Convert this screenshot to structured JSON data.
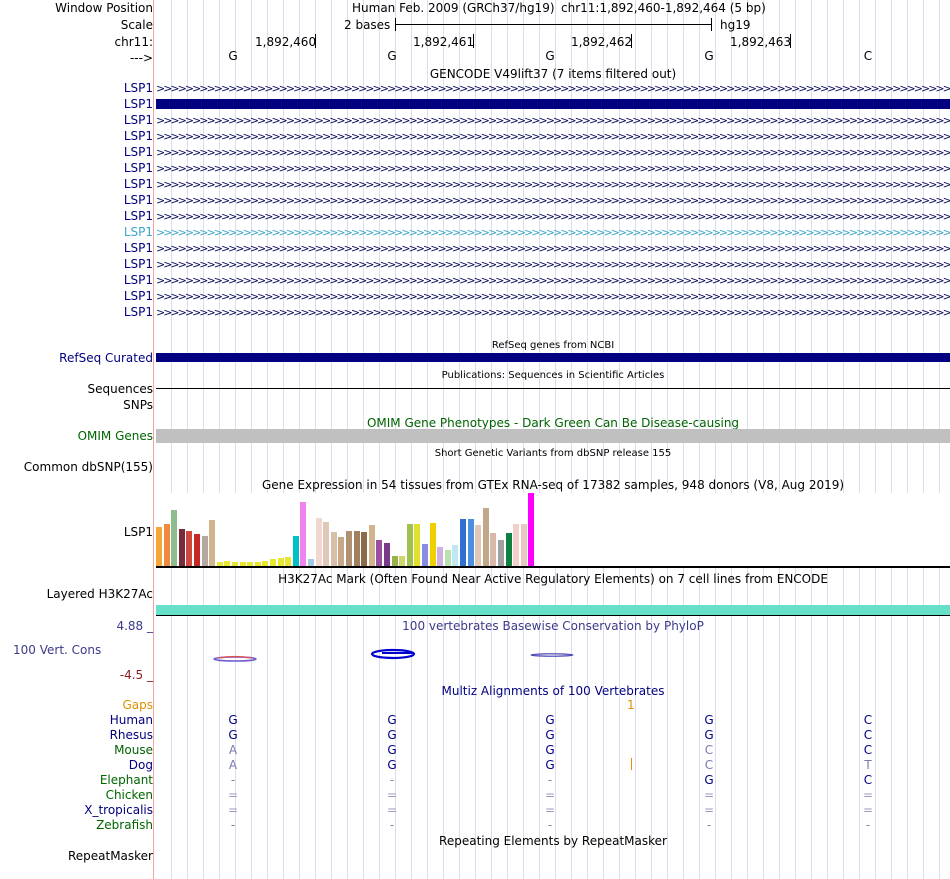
{
  "header": {
    "window_position_label": "Window Position",
    "scale_label": "Scale",
    "chrom_label": "chr11:",
    "strand_label": "--->",
    "assembly_text": "Human Feb. 2009 (GRCh37/hg19)",
    "position_text": "chr11:1,892,460-1,892,464 (5 bp)",
    "scale_text": "2 bases",
    "db_text": "hg19",
    "ruler_ticks": [
      "1,892,460",
      "1,892,461",
      "1,892,462",
      "1,892,463"
    ],
    "bases": [
      "G",
      "G",
      "G",
      "G",
      "C"
    ]
  },
  "gencode": {
    "title": "GENCODE V49lift37 (7 items filtered out)",
    "labels": [
      "LSP1",
      "LSP1",
      "LSP1",
      "LSP1",
      "LSP1",
      "LSP1",
      "LSP1",
      "LSP1",
      "LSP1",
      "LSP1",
      "LSP1",
      "LSP1",
      "LSP1",
      "LSP1",
      "LSP1"
    ],
    "highlight_label": "LSP1",
    "chevrons": ">>>>>>>>>>>>>>>>>>>>>>>>>>>>>>>>>>>>>>>>>>>>>>>>>>>>>>>>>>>>>>>>>>>>>>>>>>>>>>>>>>>>>>>>>>>>>>>>>>>>>>>>>>>>>>>>>>>>>>>>>>>>>>>>>>>>>>>>>>>>>>>>>>>>>>>>"
  },
  "refseq": {
    "title": "RefSeq genes from NCBI",
    "label": "RefSeq Curated"
  },
  "publications": {
    "title": "Publications: Sequences in Scientific Articles",
    "label": "Sequences"
  },
  "snps": {
    "label": "SNPs"
  },
  "omim": {
    "title": "OMIM Gene Phenotypes - Dark Green Can Be Disease-causing",
    "label": "OMIM Genes"
  },
  "dbsnp": {
    "title": "Short Genetic Variants from dbSNP release 155",
    "label": "Common dbSNP(155)"
  },
  "gtex": {
    "title": "Gene Expression in 54 tissues from GTEx RNA-seq of 17382 samples, 948 donors (V8, Aug 2019)",
    "label": "LSP1",
    "bars": [
      {
        "h": 0.53,
        "c": "#f4a637"
      },
      {
        "h": 0.58,
        "c": "#f08a3c"
      },
      {
        "h": 0.77,
        "c": "#8fbc8f"
      },
      {
        "h": 0.51,
        "c": "#7b2a3a"
      },
      {
        "h": 0.48,
        "c": "#d0473c"
      },
      {
        "h": 0.44,
        "c": "#c62828"
      },
      {
        "h": 0.41,
        "c": "#b5a8a0"
      },
      {
        "h": 0.63,
        "c": "#d2b48c"
      },
      {
        "h": 0.06,
        "c": "#e8e830"
      },
      {
        "h": 0.07,
        "c": "#e8e830"
      },
      {
        "h": 0.05,
        "c": "#e8e830"
      },
      {
        "h": 0.06,
        "c": "#e8e830"
      },
      {
        "h": 0.05,
        "c": "#e8e830"
      },
      {
        "h": 0.06,
        "c": "#e8e830"
      },
      {
        "h": 0.07,
        "c": "#e8e830"
      },
      {
        "h": 0.09,
        "c": "#e8e830"
      },
      {
        "h": 0.11,
        "c": "#e8e830"
      },
      {
        "h": 0.13,
        "c": "#e8e830"
      },
      {
        "h": 0.41,
        "c": "#00c0c8"
      },
      {
        "h": 0.88,
        "c": "#ee82ee"
      },
      {
        "h": 0.1,
        "c": "#a7c7e7"
      },
      {
        "h": 0.66,
        "c": "#f0d8d0"
      },
      {
        "h": 0.6,
        "c": "#e0c8b8"
      },
      {
        "h": 0.46,
        "c": "#d8c0a8"
      },
      {
        "h": 0.4,
        "c": "#c8a888"
      },
      {
        "h": 0.48,
        "c": "#b09070"
      },
      {
        "h": 0.48,
        "c": "#a08060"
      },
      {
        "h": 0.46,
        "c": "#8b6b4a"
      },
      {
        "h": 0.56,
        "c": "#d2b48c"
      },
      {
        "h": 0.35,
        "c": "#9c4fa0"
      },
      {
        "h": 0.32,
        "c": "#7a3a8a"
      },
      {
        "h": 0.14,
        "c": "#9ab04a"
      },
      {
        "h": 0.14,
        "c": "#ccd86a"
      },
      {
        "h": 0.58,
        "c": "#a0c050"
      },
      {
        "h": 0.58,
        "c": "#e0e030"
      },
      {
        "h": 0.3,
        "c": "#8a8ae0"
      },
      {
        "h": 0.59,
        "c": "#f0d000"
      },
      {
        "h": 0.26,
        "c": "#d0b0e0"
      },
      {
        "h": 0.22,
        "c": "#b8e0b0"
      },
      {
        "h": 0.29,
        "c": "#c0e8f0"
      },
      {
        "h": 0.65,
        "c": "#3070d0"
      },
      {
        "h": 0.64,
        "c": "#4a90e0"
      },
      {
        "h": 0.56,
        "c": "#e0c8b8"
      },
      {
        "h": 0.79,
        "c": "#c0a888"
      },
      {
        "h": 0.45,
        "c": "#d8b8a8"
      },
      {
        "h": 0.35,
        "c": "#a0a0a0"
      },
      {
        "h": 0.45,
        "c": "#108040"
      },
      {
        "h": 0.58,
        "c": "#f0d0c8"
      },
      {
        "h": 0.58,
        "c": "#e8c8c0"
      },
      {
        "h": 1.0,
        "c": "#ff00ff"
      }
    ]
  },
  "h3k27ac": {
    "title": "H3K27Ac Mark (Often Found Near Active Regulatory Elements) on 7 cell lines from ENCODE",
    "label": "Layered H3K27Ac"
  },
  "phylop": {
    "title": "100 vertebrates Basewise Conservation by PhyloP",
    "label": "100 Vert. Cons",
    "max": "4.88 _",
    "min": "-4.5 _"
  },
  "multiz": {
    "title": "Multiz Alignments of 100 Vertebrates",
    "gaps_label": "Gaps",
    "gap_count": "1",
    "species": [
      {
        "name": "Human",
        "color": "#000080",
        "bases": [
          "G",
          "G",
          "G",
          "G",
          "C"
        ],
        "bc": [
          "#000080",
          "#000080",
          "#000080",
          "#000080",
          "#000080"
        ]
      },
      {
        "name": "Rhesus",
        "color": "#000080",
        "bases": [
          "G",
          "G",
          "G",
          "G",
          "C"
        ],
        "bc": [
          "#000080",
          "#000080",
          "#000080",
          "#000080",
          "#000080"
        ]
      },
      {
        "name": "Mouse",
        "color": "#006400",
        "bases": [
          "A",
          "G",
          "G",
          "C",
          "C"
        ],
        "bc": [
          "#7a7ab0",
          "#000080",
          "#000080",
          "#7a7ab0",
          "#000080"
        ]
      },
      {
        "name": "Dog",
        "color": "#000080",
        "bases": [
          "A",
          "G",
          "G",
          "C",
          "T"
        ],
        "bc": [
          "#7a7ab0",
          "#000080",
          "#000080",
          "#7a7ab0",
          "#7a7ab0"
        ]
      },
      {
        "name": "Elephant",
        "color": "#006400",
        "bases": [
          "-",
          "-",
          "-",
          "G",
          "C"
        ],
        "bc": [
          "#888888",
          "#888888",
          "#888888",
          "#000080",
          "#000080"
        ]
      },
      {
        "name": "Chicken",
        "color": "#006400",
        "bases": [
          "=",
          "=",
          "=",
          "=",
          "="
        ],
        "bc": [
          "#9a9ac0",
          "#9a9ac0",
          "#9a9ac0",
          "#9a9ac0",
          "#9a9ac0"
        ]
      },
      {
        "name": "X_tropicalis",
        "color": "#000080",
        "bases": [
          "=",
          "=",
          "=",
          "=",
          "="
        ],
        "bc": [
          "#9a9ac0",
          "#9a9ac0",
          "#9a9ac0",
          "#9a9ac0",
          "#9a9ac0"
        ]
      },
      {
        "name": "Zebrafish",
        "color": "#006400",
        "bases": [
          "-",
          "-",
          "-",
          "-",
          "-"
        ],
        "bc": [
          "#888888",
          "#888888",
          "#888888",
          "#888888",
          "#888888"
        ]
      }
    ]
  },
  "repeatmasker": {
    "title": "Repeating Elements by RepeatMasker",
    "label": "RepeatMasker"
  },
  "colors": {
    "navy": "#000080",
    "gene_dark": "#0a0a5a",
    "gene_highlight": "#3aa6c8",
    "omim_bar": "#c0c0c0",
    "omim_text": "#006400",
    "h3k27ac_bar": "#66e0c8",
    "gaps_orange": "#e09000",
    "phylop_text": "#3a3a8a"
  }
}
